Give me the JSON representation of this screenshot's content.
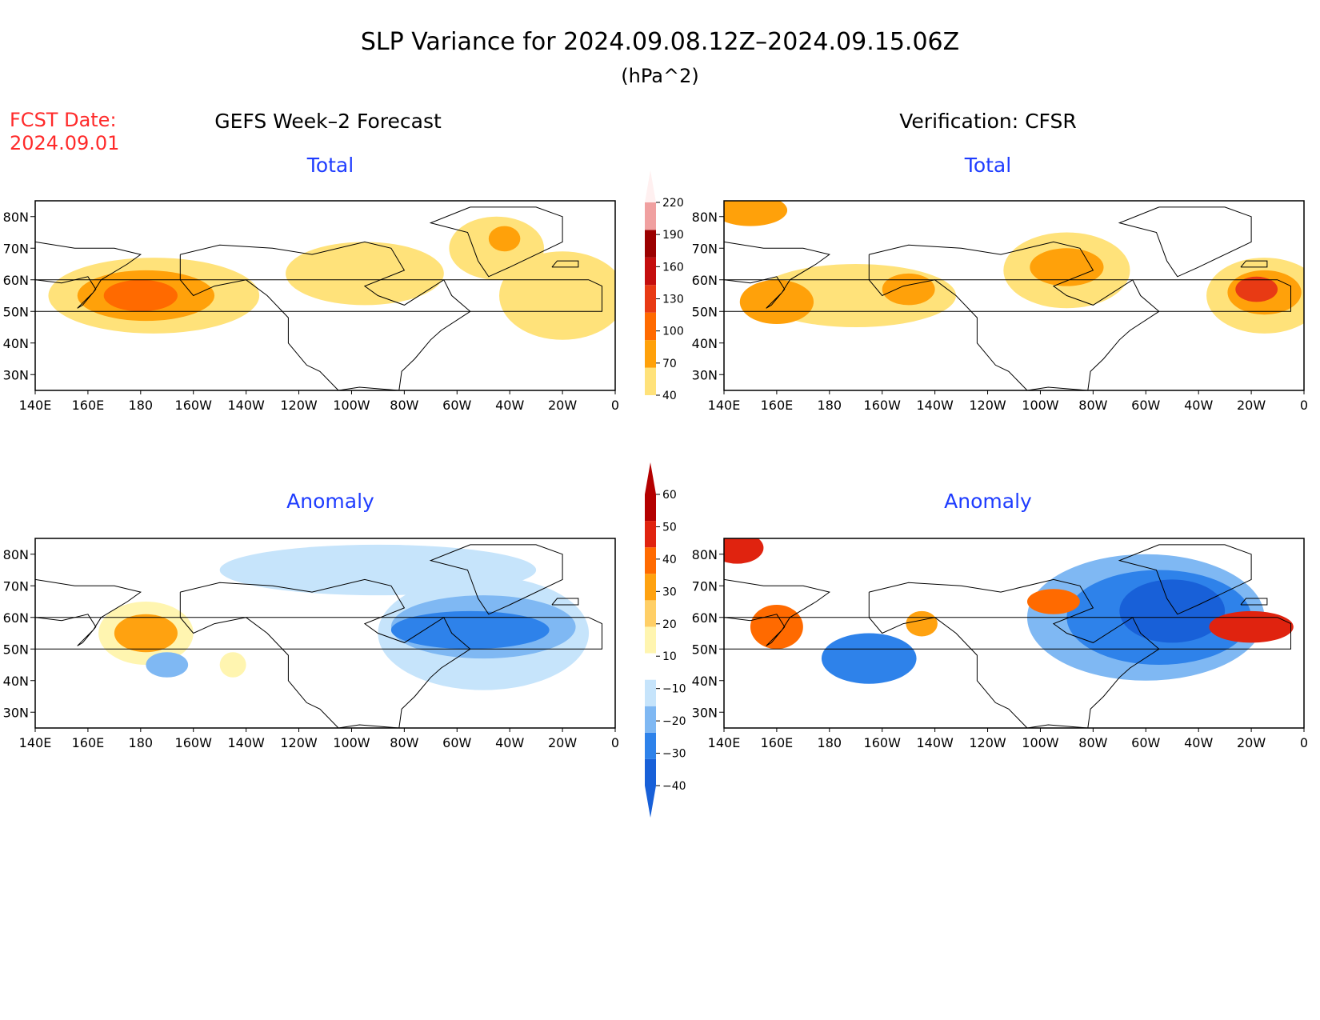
{
  "title": "SLP Variance for 2024.09.08.12Z–2024.09.15.06Z",
  "units": "(hPa^2)",
  "fcst": {
    "line1": "FCST Date:",
    "line2": "2024.09.01"
  },
  "left_header": "GEFS Week–2 Forecast",
  "right_header": "Verification: CFSR",
  "panel_titles": {
    "total": "Total",
    "anomaly": "Anomaly"
  },
  "lat_labels": [
    "80N",
    "70N",
    "60N",
    "50N",
    "40N",
    "30N"
  ],
  "lon_labels": [
    "140E",
    "160E",
    "180",
    "160W",
    "140W",
    "120W",
    "100W",
    "80W",
    "60W",
    "40W",
    "20W",
    "0"
  ],
  "colors": {
    "title_red": "#ff2a2a",
    "panel_title_blue": "#1e3cff",
    "total_scale": [
      "#ffe27a",
      "#ffa10a",
      "#ff6a00",
      "#e83a14",
      "#c40e0e",
      "#9b0000",
      "#f0a0a0",
      "#fdd0d0",
      "#fff0f0"
    ],
    "anom_scale": [
      "#1860d8",
      "#2e82ea",
      "#7fb8f3",
      "#c6e4fb",
      "#ffffff",
      "#fff5b0",
      "#ffcf66",
      "#ffa210",
      "#ff6a00",
      "#e0230f",
      "#b40000"
    ]
  },
  "colorbar_total": {
    "labels": [
      "220",
      "190",
      "160",
      "130",
      "100",
      "70",
      "40"
    ],
    "levels": [
      40,
      70,
      100,
      130,
      160,
      190,
      220
    ]
  },
  "colorbar_anomaly": {
    "labels": [
      "60",
      "50",
      "40",
      "30",
      "20",
      "10",
      "−10",
      "−20",
      "−30",
      "−40"
    ],
    "levels": [
      -40,
      -30,
      -20,
      -10,
      10,
      20,
      30,
      40,
      50,
      60
    ]
  },
  "panels": [
    {
      "id": "fcst-total",
      "title": "Total",
      "blobs": [
        {
          "lon": -175,
          "lat": 55,
          "rx": 40,
          "ry": 12,
          "band": 0
        },
        {
          "lon": -178,
          "lat": 55,
          "rx": 26,
          "ry": 8,
          "band": 1
        },
        {
          "lon": -180,
          "lat": 55,
          "rx": 14,
          "ry": 5,
          "band": 2
        },
        {
          "lon": -95,
          "lat": 62,
          "rx": 30,
          "ry": 10,
          "band": 0
        },
        {
          "lon": -45,
          "lat": 70,
          "rx": 18,
          "ry": 10,
          "band": 0
        },
        {
          "lon": -20,
          "lat": 55,
          "rx": 24,
          "ry": 14,
          "band": 0
        },
        {
          "lon": -42,
          "lat": 73,
          "rx": 6,
          "ry": 4,
          "band": 1
        }
      ]
    },
    {
      "id": "verif-total",
      "title": "Total",
      "blobs": [
        {
          "lon": -170,
          "lat": 55,
          "rx": 38,
          "ry": 10,
          "band": 0
        },
        {
          "lon": 160,
          "lat": 53,
          "rx": 14,
          "ry": 7,
          "band": 1
        },
        {
          "lon": -150,
          "lat": 57,
          "rx": 10,
          "ry": 5,
          "band": 1
        },
        {
          "lon": -90,
          "lat": 63,
          "rx": 24,
          "ry": 12,
          "band": 0
        },
        {
          "lon": -90,
          "lat": 64,
          "rx": 14,
          "ry": 6,
          "band": 1
        },
        {
          "lon": -15,
          "lat": 55,
          "rx": 22,
          "ry": 12,
          "band": 0
        },
        {
          "lon": -15,
          "lat": 56,
          "rx": 14,
          "ry": 7,
          "band": 1
        },
        {
          "lon": -18,
          "lat": 57,
          "rx": 8,
          "ry": 4,
          "band": 3
        },
        {
          "lon": 150,
          "lat": 82,
          "rx": 14,
          "ry": 5,
          "band": 1
        }
      ]
    },
    {
      "id": "fcst-anomaly",
      "title": "Anomaly",
      "blobs": [
        {
          "lon": -90,
          "lat": 75,
          "rx": 60,
          "ry": 8,
          "band": 3
        },
        {
          "lon": -50,
          "lat": 55,
          "rx": 40,
          "ry": 18,
          "band": 3
        },
        {
          "lon": -50,
          "lat": 57,
          "rx": 35,
          "ry": 10,
          "band": 2
        },
        {
          "lon": -55,
          "lat": 56,
          "rx": 30,
          "ry": 6,
          "band": 1
        },
        {
          "lon": -178,
          "lat": 55,
          "rx": 18,
          "ry": 10,
          "band": 5
        },
        {
          "lon": -178,
          "lat": 55,
          "rx": 12,
          "ry": 6,
          "band": 7
        },
        {
          "lon": -170,
          "lat": 45,
          "rx": 8,
          "ry": 4,
          "band": 2
        },
        {
          "lon": -145,
          "lat": 45,
          "rx": 5,
          "ry": 4,
          "band": 5
        }
      ]
    },
    {
      "id": "verif-anomaly",
      "title": "Anomaly",
      "blobs": [
        {
          "lon": -60,
          "lat": 60,
          "rx": 45,
          "ry": 20,
          "band": 2
        },
        {
          "lon": -55,
          "lat": 60,
          "rx": 35,
          "ry": 15,
          "band": 1
        },
        {
          "lon": -50,
          "lat": 62,
          "rx": 20,
          "ry": 10,
          "band": 0
        },
        {
          "lon": -165,
          "lat": 47,
          "rx": 18,
          "ry": 8,
          "band": 1
        },
        {
          "lon": 160,
          "lat": 57,
          "rx": 10,
          "ry": 7,
          "band": 8
        },
        {
          "lon": -95,
          "lat": 65,
          "rx": 10,
          "ry": 4,
          "band": 8
        },
        {
          "lon": -20,
          "lat": 57,
          "rx": 16,
          "ry": 5,
          "band": 9
        },
        {
          "lon": -145,
          "lat": 58,
          "rx": 6,
          "ry": 4,
          "band": 7
        },
        {
          "lon": 145,
          "lat": 82,
          "rx": 10,
          "ry": 5,
          "band": 9
        }
      ]
    }
  ]
}
